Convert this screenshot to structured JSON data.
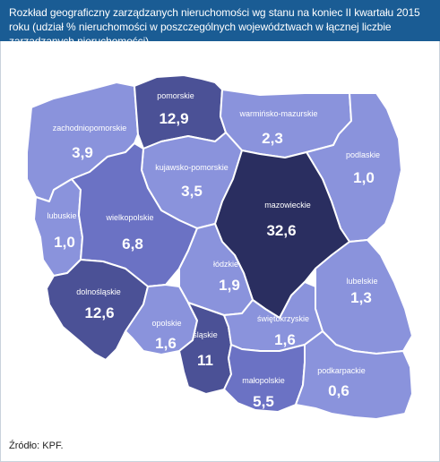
{
  "title": "Rozkład geograficzny zarządzanych nieruchomości wg stanu na koniec II kwartału 2015 roku (udział % nieruchomości w poszczególnych województwach w łącznej liczbie zarządzanych nieruchomości)",
  "source": "Źródło: KPF.",
  "colors": {
    "title_bar": "#1a5c94",
    "level_1": "#8a93dc",
    "level_2": "#6b72c4",
    "level_3": "#4b5196",
    "level_4": "#2a2e60"
  },
  "regions": [
    {
      "id": "zachodniopomorskie",
      "name": "zachodniopomorskie",
      "value": "3,9",
      "share": 3.9
    },
    {
      "id": "pomorskie",
      "name": "pomorskie",
      "value": "12,9",
      "share": 12.9
    },
    {
      "id": "warminsko-mazurskie",
      "name": "warmińsko-mazurskie",
      "value": "2,3",
      "share": 2.3
    },
    {
      "id": "podlaskie",
      "name": "podlaskie",
      "value": "1,0",
      "share": 1.0
    },
    {
      "id": "kujawsko-pomorskie",
      "name": "kujawsko-pomorskie",
      "value": "3,5",
      "share": 3.5
    },
    {
      "id": "lubuskie",
      "name": "lubuskie",
      "value": "1,0",
      "share": 1.0
    },
    {
      "id": "wielkopolskie",
      "name": "wielkopolskie",
      "value": "6,8",
      "share": 6.8
    },
    {
      "id": "mazowieckie",
      "name": "mazowieckie",
      "value": "32,6",
      "share": 32.6
    },
    {
      "id": "lodzkie",
      "name": "łódzkie",
      "value": "1,9",
      "share": 1.9
    },
    {
      "id": "dolnoslaskie",
      "name": "dolnośląskie",
      "value": "12,6",
      "share": 12.6
    },
    {
      "id": "lubelskie",
      "name": "lubelskie",
      "value": "1,3",
      "share": 1.3
    },
    {
      "id": "opolskie",
      "name": "opolskie",
      "value": "1,6",
      "share": 1.6
    },
    {
      "id": "slaskie",
      "name": "śląskie",
      "value": "11",
      "share": 11
    },
    {
      "id": "swietokrzyskie",
      "name": "świętokrzyskie",
      "value": "1,6",
      "share": 1.6
    },
    {
      "id": "malopolskie",
      "name": "małopolskie",
      "value": "5,5",
      "share": 5.5
    },
    {
      "id": "podkarpackie",
      "name": "podkarpackie",
      "value": "0,6",
      "share": 0.6
    }
  ]
}
